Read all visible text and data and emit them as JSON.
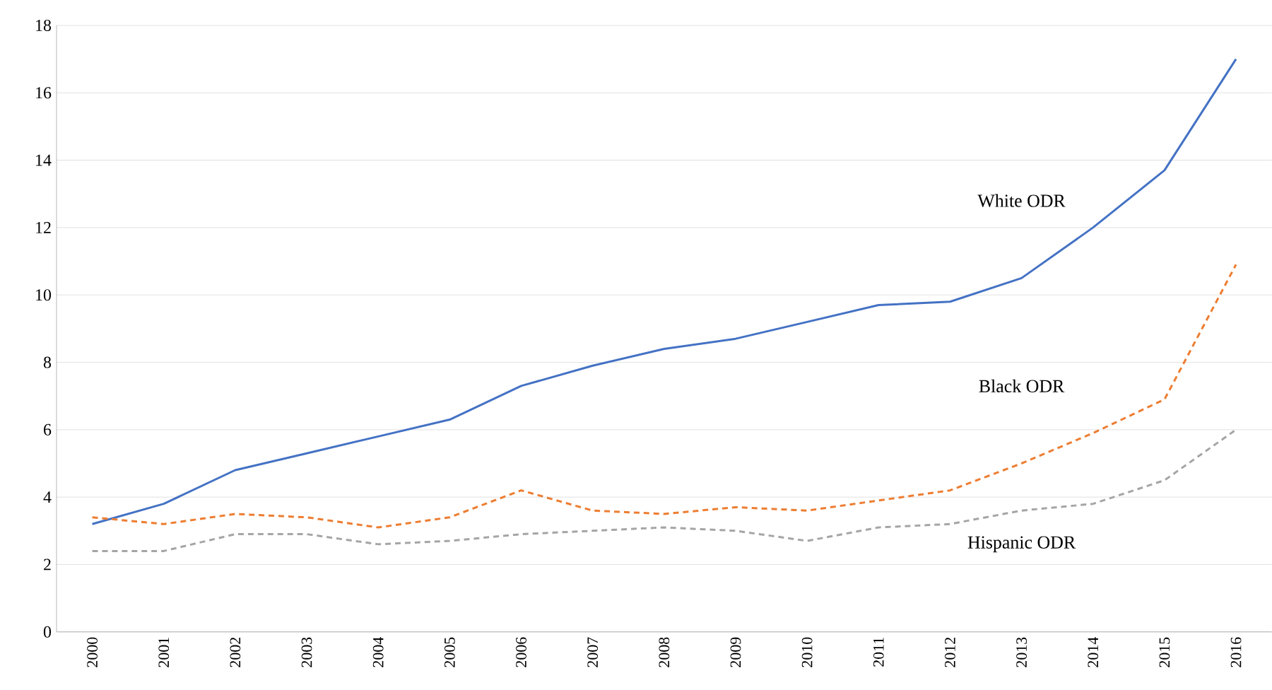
{
  "chart_data": {
    "type": "line",
    "categories": [
      "2000",
      "2001",
      "2002",
      "2003",
      "2004",
      "2005",
      "2006",
      "2007",
      "2008",
      "2009",
      "2010",
      "2011",
      "2012",
      "2013",
      "2014",
      "2015",
      "2016"
    ],
    "series": [
      {
        "name": "White ODR",
        "color": "#4472c4",
        "line_style": "solid",
        "values": [
          3.2,
          3.8,
          4.8,
          5.3,
          5.8,
          6.3,
          7.3,
          7.9,
          8.4,
          8.7,
          9.2,
          9.7,
          9.8,
          10.5,
          12.0,
          13.7,
          17.0
        ]
      },
      {
        "name": "Black ODR",
        "color": "#ed7d31",
        "line_style": "dashed",
        "values": [
          3.4,
          3.2,
          3.5,
          3.4,
          3.1,
          3.4,
          4.2,
          3.6,
          3.5,
          3.7,
          3.6,
          3.9,
          4.2,
          5.0,
          5.9,
          6.9,
          10.9
        ]
      },
      {
        "name": "Hispanic ODR",
        "color": "#a5a5a5",
        "line_style": "dashed",
        "values": [
          2.4,
          2.4,
          2.9,
          2.9,
          2.6,
          2.7,
          2.9,
          3.0,
          3.1,
          3.0,
          2.7,
          3.1,
          3.2,
          3.6,
          3.8,
          4.5,
          6.0
        ]
      }
    ],
    "ylim": [
      0,
      18
    ],
    "yticks": [
      0,
      2,
      4,
      6,
      8,
      10,
      12,
      14,
      16,
      18
    ],
    "grid": "y",
    "marker": "none"
  }
}
